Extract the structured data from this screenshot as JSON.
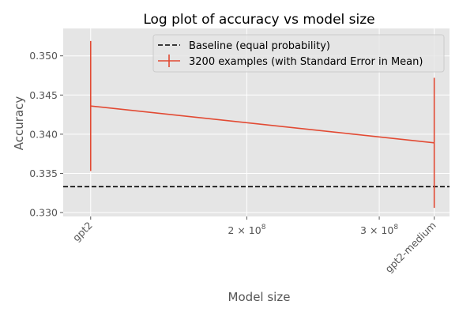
{
  "chart_data": {
    "type": "line",
    "title": "Log plot of accuracy vs model size",
    "xlabel": "Model size",
    "ylabel": "Accuracy",
    "xscale": "log",
    "xlim": [
      114000000,
      372000000
    ],
    "ylim": [
      0.3295,
      0.3535
    ],
    "grid": true,
    "legend_position": "top-right",
    "y_ticks": [
      0.33,
      0.335,
      0.34,
      0.345,
      0.35
    ],
    "y_tick_labels": [
      "0.330",
      "0.335",
      "0.340",
      "0.345",
      "0.350"
    ],
    "x_ticks": [
      {
        "value": 124000000,
        "label": "gpt2",
        "rotated": true
      },
      {
        "value": 200000000,
        "label": "2 × 10^8",
        "base": "2 × 10",
        "exp": "8",
        "rotated": false
      },
      {
        "value": 300000000,
        "label": "3 × 10^8",
        "base": "3 × 10",
        "exp": "8",
        "rotated": false
      },
      {
        "value": 355000000,
        "label": "gpt2-medium",
        "rotated": true
      }
    ],
    "series": [
      {
        "name": "3200 examples (with Standard Error in Mean)",
        "color": "#E24A33",
        "x": [
          124000000,
          355000000
        ],
        "y": [
          0.3436,
          0.3389
        ],
        "error": [
          0.0083,
          0.0083
        ]
      }
    ],
    "baseline": {
      "name": "Baseline (equal probability)",
      "y": 0.3333,
      "color": "#000000",
      "style": "dashed"
    },
    "colors": {
      "plot_background": "#E5E5E5",
      "grid": "#FFFFFF",
      "text": "#555555"
    }
  }
}
